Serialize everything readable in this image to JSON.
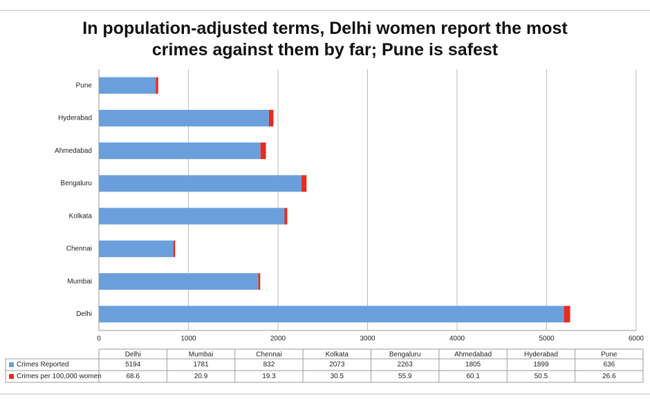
{
  "chart_data": {
    "type": "stacked-bar-horizontal",
    "title": "In population-adjusted terms, Delhi women report the most crimes against them by far; Pune is safest",
    "categories": [
      "Delhi",
      "Mumbai",
      "Chennai",
      "Kolkata",
      "Bengaluru",
      "Ahmedabad",
      "Hyderabad",
      "Pune"
    ],
    "series": [
      {
        "name": "Crimes Reported",
        "color": "#6a9fdc",
        "values": [
          5194,
          1781,
          832,
          2073,
          2263,
          1805,
          1899,
          636
        ]
      },
      {
        "name": "Crimes per 100,000 women",
        "color": "#ea2a1c",
        "values": [
          68.6,
          20.9,
          19.3,
          30.5,
          55.9,
          60.1,
          50.5,
          26.6
        ]
      }
    ],
    "xlim": [
      0,
      6000
    ],
    "xticks": [
      0,
      1000,
      2000,
      3000,
      4000,
      5000,
      6000
    ],
    "grid": true,
    "data_table": true
  }
}
